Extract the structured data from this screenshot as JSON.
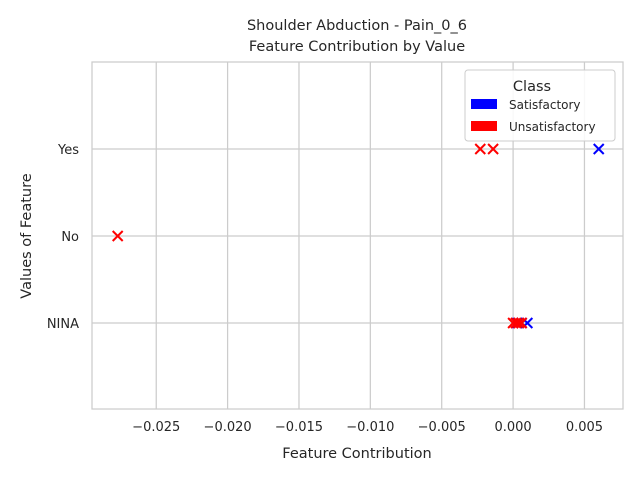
{
  "chart_data": {
    "type": "scatter",
    "title": "Shoulder Abduction - Pain_0_6",
    "subtitle": "Feature Contribution by Value",
    "xlabel": "Feature Contribution",
    "ylabel": "Values of Feature",
    "xlim": [
      -0.0295,
      0.0077
    ],
    "x_ticks": [
      -0.025,
      -0.02,
      -0.015,
      -0.01,
      -0.005,
      0.0,
      0.005
    ],
    "x_tick_labels": [
      "−0.025",
      "−0.020",
      "−0.015",
      "−0.010",
      "−0.005",
      "0.000",
      "0.005"
    ],
    "categories": [
      "NINA",
      "No",
      "Yes"
    ],
    "grid": true,
    "marker": "x",
    "legend": {
      "title": "Class",
      "placement": "top-right",
      "entries": [
        {
          "name": "Satisfactory",
          "color": "#0000ff"
        },
        {
          "name": "Unsatisfactory",
          "color": "#ff0000"
        }
      ]
    },
    "series": [
      {
        "name": "Satisfactory",
        "color": "#0000ff",
        "points": [
          {
            "x": 0.006,
            "y": "Yes"
          },
          {
            "x": 0.001,
            "y": "NINA"
          },
          {
            "x": 0.0006,
            "y": "NINA"
          },
          {
            "x": 0.0003,
            "y": "NINA"
          }
        ]
      },
      {
        "name": "Unsatisfactory",
        "color": "#ff0000",
        "points": [
          {
            "x": -0.0023,
            "y": "Yes"
          },
          {
            "x": -0.0014,
            "y": "Yes"
          },
          {
            "x": -0.0277,
            "y": "No"
          },
          {
            "x": 0.0,
            "y": "NINA"
          },
          {
            "x": 0.0002,
            "y": "NINA"
          },
          {
            "x": 0.0004,
            "y": "NINA"
          },
          {
            "x": 0.0006,
            "y": "NINA"
          }
        ]
      }
    ]
  }
}
